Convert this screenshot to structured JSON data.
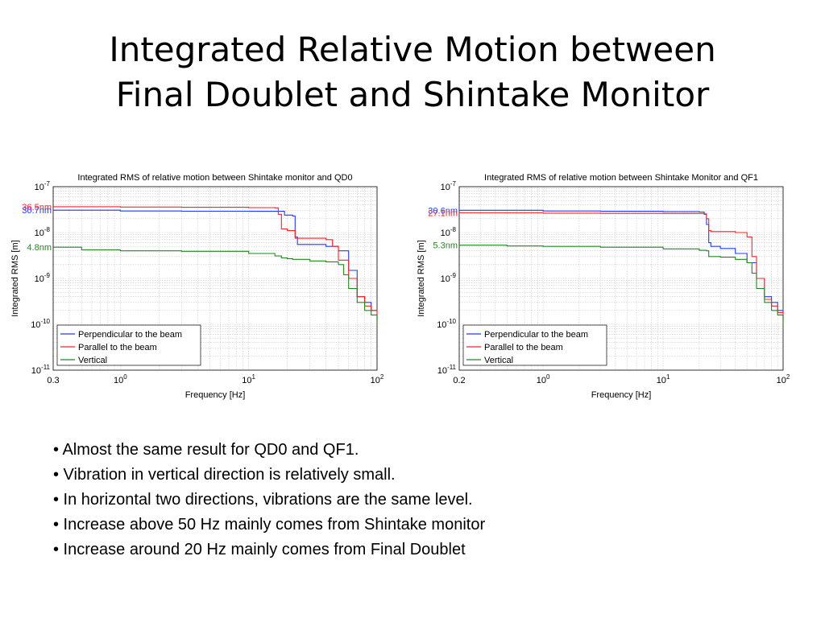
{
  "slide": {
    "title_lines": [
      "Integrated Relative Motion between",
      "Final Doublet and Shintake Monitor"
    ]
  },
  "chart_data": [
    {
      "type": "line",
      "title": "Integrated RMS of relative motion between Shintake monitor and QD0",
      "xlabel": "Frequency [Hz]",
      "ylabel": "Integrated RMS [m]",
      "x_scale": "log",
      "y_scale": "log",
      "xlim": [
        0.3,
        100
      ],
      "ylim": [
        1e-11,
        1e-07
      ],
      "x_ticks": [
        {
          "value": 0.3,
          "base": "0.3",
          "exp": ""
        },
        {
          "value": 1,
          "base": "10",
          "exp": "0"
        },
        {
          "value": 10,
          "base": "10",
          "exp": "1"
        },
        {
          "value": 100,
          "base": "10",
          "exp": "2"
        }
      ],
      "y_ticks": [
        {
          "value": 1e-07,
          "base": "10",
          "exp": "-7"
        },
        {
          "value": 1e-08,
          "base": "10",
          "exp": "-8"
        },
        {
          "value": 1e-09,
          "base": "10",
          "exp": "-9"
        },
        {
          "value": 1e-10,
          "base": "10",
          "exp": "-10"
        },
        {
          "value": 1e-11,
          "base": "10",
          "exp": "-11"
        }
      ],
      "grid": true,
      "legend_position": "bottom-left",
      "colors": {
        "perp": "#1f3bff",
        "par": "#ff2020",
        "vert": "#1b8a1b"
      },
      "series": [
        {
          "name": "Perpendicular to the beam",
          "key": "perp",
          "color": "#1f3bff",
          "x": [
            0.3,
            1,
            3,
            10,
            18,
            19,
            22,
            23,
            24,
            40,
            50,
            60,
            70,
            80,
            90,
            100
          ],
          "y": [
            3.07e-08,
            2.95e-08,
            2.92e-08,
            2.9e-08,
            2.9e-08,
            2.4e-08,
            2.3e-08,
            8e-09,
            5.5e-09,
            5e-09,
            4e-09,
            1.5e-09,
            4e-10,
            3e-10,
            2e-10,
            1.2e-10
          ]
        },
        {
          "name": "Parallel to the beam",
          "key": "par",
          "color": "#ff2020",
          "x": [
            0.3,
            1,
            3,
            10,
            16,
            17,
            18,
            20,
            22,
            23,
            30,
            40,
            45,
            50,
            60,
            70,
            80,
            90,
            100
          ],
          "y": [
            3.65e-08,
            3.6e-08,
            3.55e-08,
            3.5e-08,
            3.45e-08,
            2.5e-08,
            1.2e-08,
            1.1e-08,
            1.1e-08,
            7.5e-09,
            7.5e-09,
            7e-09,
            5e-09,
            2.5e-09,
            1e-09,
            4e-10,
            2.5e-10,
            2e-10,
            1e-10
          ]
        },
        {
          "name": "Vertical",
          "key": "vert",
          "color": "#1b8a1b",
          "x": [
            0.3,
            0.5,
            1,
            3,
            10,
            16,
            18,
            20,
            22,
            30,
            40,
            50,
            55,
            60,
            70,
            80,
            90,
            100
          ],
          "y": [
            4.8e-09,
            4.2e-09,
            4e-09,
            3.9e-09,
            3.5e-09,
            3.1e-09,
            2.8e-09,
            2.7e-09,
            2.6e-09,
            2.4e-09,
            2.3e-09,
            2e-09,
            1.2e-09,
            6e-10,
            3e-10,
            2e-10,
            1.6e-10,
            1e-10
          ]
        }
      ],
      "annotations": [
        {
          "text": "36.5nm",
          "value": 3.65e-08,
          "color": "#ff2020"
        },
        {
          "text": "30.7nm",
          "value": 3.07e-08,
          "color": "#1f3bff"
        },
        {
          "text": "4.8nm",
          "value": 4.8e-09,
          "color": "#1b8a1b"
        }
      ]
    },
    {
      "type": "line",
      "title": "Integrated RMS of relative motion between Shintake Monitor and QF1",
      "xlabel": "Frequency [Hz]",
      "ylabel": "Integrated RMS [m]",
      "x_scale": "log",
      "y_scale": "log",
      "xlim": [
        0.2,
        100
      ],
      "ylim": [
        1e-11,
        1e-07
      ],
      "x_ticks": [
        {
          "value": 0.2,
          "base": "0.2",
          "exp": ""
        },
        {
          "value": 1,
          "base": "10",
          "exp": "0"
        },
        {
          "value": 10,
          "base": "10",
          "exp": "1"
        },
        {
          "value": 100,
          "base": "10",
          "exp": "2"
        }
      ],
      "y_ticks": [
        {
          "value": 1e-07,
          "base": "10",
          "exp": "-7"
        },
        {
          "value": 1e-08,
          "base": "10",
          "exp": "-8"
        },
        {
          "value": 1e-09,
          "base": "10",
          "exp": "-9"
        },
        {
          "value": 1e-10,
          "base": "10",
          "exp": "-10"
        },
        {
          "value": 1e-11,
          "base": "10",
          "exp": "-11"
        }
      ],
      "grid": true,
      "legend_position": "bottom-left",
      "colors": {
        "perp": "#1f3bff",
        "par": "#ff2020",
        "vert": "#1b8a1b"
      },
      "series": [
        {
          "name": "Perpendicular to the beam",
          "key": "perp",
          "color": "#1f3bff",
          "x": [
            0.2,
            1,
            3,
            10,
            20,
            22,
            23,
            24,
            25,
            30,
            40,
            50,
            60,
            70,
            80,
            90,
            100
          ],
          "y": [
            3.06e-08,
            2.95e-08,
            2.9e-08,
            2.85e-08,
            2.8e-08,
            2.5e-08,
            1.5e-08,
            6e-09,
            5e-09,
            4.5e-09,
            3.5e-09,
            2.2e-09,
            1e-09,
            4e-10,
            3e-10,
            2e-10,
            1.2e-10
          ]
        },
        {
          "name": "Parallel to the beam",
          "key": "par",
          "color": "#ff2020",
          "x": [
            0.2,
            1,
            3,
            10,
            22,
            23,
            24,
            25,
            30,
            40,
            50,
            55,
            60,
            70,
            80,
            90,
            100
          ],
          "y": [
            2.71e-08,
            2.65e-08,
            2.62e-08,
            2.6e-08,
            2.55e-08,
            2e-08,
            1.1e-08,
            1.05e-08,
            1.05e-08,
            1e-08,
            8e-09,
            3e-09,
            1e-09,
            3.5e-10,
            2.5e-10,
            1.8e-10,
            1e-10
          ]
        },
        {
          "name": "Vertical",
          "key": "vert",
          "color": "#1b8a1b",
          "x": [
            0.2,
            0.5,
            1,
            3,
            10,
            20,
            23,
            24,
            25,
            30,
            40,
            50,
            55,
            60,
            70,
            80,
            90,
            100
          ],
          "y": [
            5.3e-09,
            5.1e-09,
            5e-09,
            4.8e-09,
            4.4e-09,
            4.1e-09,
            4e-09,
            3e-09,
            3e-09,
            2.9e-09,
            2.6e-09,
            2.2e-09,
            1.3e-09,
            6e-10,
            3e-10,
            2e-10,
            1.6e-10,
            1e-10
          ]
        }
      ],
      "annotations": [
        {
          "text": "30.6nm",
          "value": 3.06e-08,
          "color": "#1f3bff"
        },
        {
          "text": "27.1nm",
          "value": 2.71e-08,
          "color": "#ff2020"
        },
        {
          "text": "5.3nm",
          "value": 5.3e-09,
          "color": "#1b8a1b"
        }
      ]
    }
  ],
  "bullets": [
    "• Almost the same result for QD0 and QF1.",
    "• Vibration in vertical direction is relatively small.",
    "• In horizontal two directions, vibrations are the same level.",
    "• Increase above 50 Hz mainly comes from Shintake monitor",
    "• Increase around 20 Hz mainly comes from Final Doublet"
  ]
}
